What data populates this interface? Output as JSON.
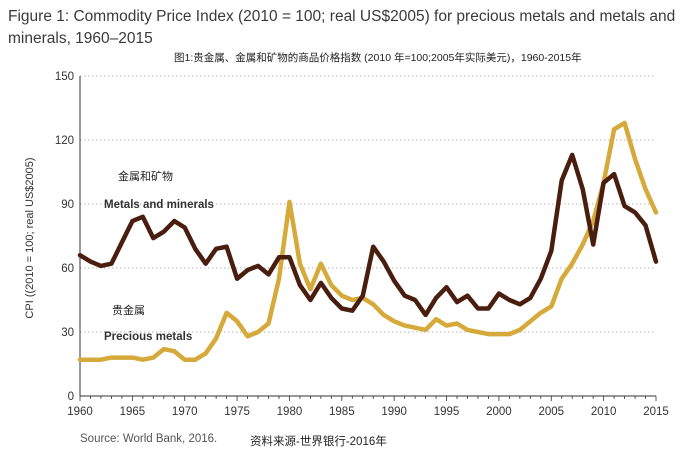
{
  "chart_data": {
    "type": "line",
    "title": "Figure 1: Commodity Price Index (2010 = 100; real US$2005) for precious metals and metals and minerals, 1960–2015",
    "subtitle_cn": "图1:贵金属、金属和矿物的商品价格指数 (2010 年=100;2005年实际美元)，1960-2015年",
    "ylabel": "CPI ((2010 = 100; real US$2005)",
    "xlabel": "",
    "xlim": [
      1960,
      2015
    ],
    "ylim": [
      0,
      150
    ],
    "x_ticks": [
      1960,
      1965,
      1970,
      1975,
      1980,
      1985,
      1990,
      1995,
      2000,
      2005,
      2010,
      2015
    ],
    "y_ticks": [
      0,
      30,
      60,
      90,
      120,
      150
    ],
    "grid": "horizontal dotted",
    "x": [
      1960,
      1961,
      1962,
      1963,
      1964,
      1965,
      1966,
      1967,
      1968,
      1969,
      1970,
      1971,
      1972,
      1973,
      1974,
      1975,
      1976,
      1977,
      1978,
      1979,
      1980,
      1981,
      1982,
      1983,
      1984,
      1985,
      1986,
      1987,
      1988,
      1989,
      1990,
      1991,
      1992,
      1993,
      1994,
      1995,
      1996,
      1997,
      1998,
      1999,
      2000,
      2001,
      2002,
      2003,
      2004,
      2005,
      2006,
      2007,
      2008,
      2009,
      2010,
      2011,
      2012,
      2013,
      2014,
      2015
    ],
    "series": [
      {
        "name_en": "Metals and minerals",
        "name_cn": "金属和矿物",
        "color": "#4a1e0e",
        "values": [
          66,
          63,
          61,
          62,
          72,
          82,
          84,
          74,
          77,
          82,
          79,
          69,
          62,
          69,
          70,
          55,
          59,
          61,
          57,
          65,
          65,
          52,
          45,
          53,
          46,
          41,
          40,
          47,
          70,
          63,
          54,
          47,
          45,
          38,
          46,
          51,
          44,
          47,
          41,
          41,
          48,
          45,
          43,
          46,
          55,
          68,
          101,
          113,
          97,
          71,
          100,
          104,
          89,
          86,
          80,
          63
        ]
      },
      {
        "name_en": "Precious metals",
        "name_cn": "贵金属",
        "color": "#d5a93a",
        "values": [
          17,
          17,
          17,
          18,
          18,
          18,
          17,
          18,
          22,
          21,
          17,
          17,
          20,
          27,
          39,
          35,
          28,
          30,
          34,
          55,
          91,
          62,
          50,
          62,
          52,
          47,
          45,
          46,
          43,
          38,
          35,
          33,
          32,
          31,
          36,
          33,
          34,
          31,
          30,
          29,
          29,
          29,
          31,
          35,
          39,
          42,
          55,
          62,
          71,
          82,
          100,
          125,
          128,
          111,
          97,
          86
        ]
      }
    ]
  },
  "source_en": "Source: World Bank, 2016.",
  "source_cn": "资料来源-世界银行-2016年"
}
